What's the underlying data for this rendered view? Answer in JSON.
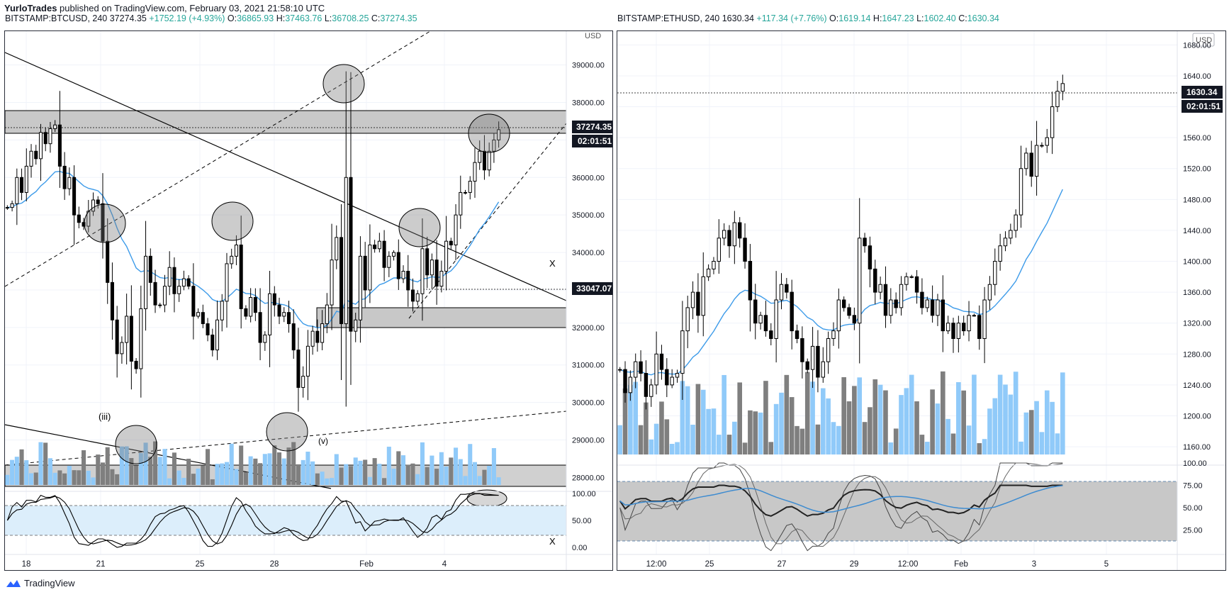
{
  "header": {
    "author": "YurloTrades",
    "published_text": "published on TradingView.com, February 03, 2021 21:58:10 UTC"
  },
  "footer": {
    "brand": "TradingView",
    "logo_icon": "tradingview-logo-icon"
  },
  "panels": [
    {
      "symbol": "BITSTAMP:BTCUSD, 240",
      "last": "37274.35",
      "change": "+1752.19 (+4.93%)",
      "o_label": "O:",
      "o": "36865.93",
      "h_label": "H:",
      "h": "37463.76",
      "l_label": "L:",
      "l": "36708.25",
      "c_label": "C:",
      "c": "37274.35"
    },
    {
      "symbol": "BITSTAMP:ETHUSD, 240",
      "last": "1630.34",
      "change": "+117.34 (+7.76%)",
      "o_label": "O:",
      "o": "1619.14",
      "h_label": "H:",
      "h": "1647.23",
      "l_label": "L:",
      "l": "1602.40",
      "c_label": "C:",
      "c": "1630.34"
    }
  ],
  "colors": {
    "up": "#ffffff",
    "down": "#000000",
    "ma": "#3d9be9",
    "vol_up": "#90caf9",
    "vol_down": "#7f7f7f",
    "zone": "#c8c8c8",
    "osc_band_btc": "#dceefb",
    "osc_band_eth": "#c8c8c8",
    "price_tag_bg": "#131722"
  },
  "chart_data": [
    {
      "type": "candlestick",
      "title": "BITSTAMP:BTCUSD, 240",
      "currency_label": "USD",
      "ylim": [
        27800,
        39900
      ],
      "y_ticks": [
        "28000.00",
        "29000.00",
        "30000.00",
        "31000.00",
        "32000.00",
        "33000.00",
        "34000.00",
        "35000.00",
        "36000.00",
        "37000.00",
        "38000.00",
        "39000.00"
      ],
      "x_ticks": [
        "18",
        "21",
        "25",
        "28",
        "Feb",
        "4"
      ],
      "last_price_label": "37274.35",
      "countdown_label": "02:01:51",
      "level_label": "33047.07",
      "annotations": [
        "(iii)",
        "(v)",
        "X",
        "X"
      ],
      "resistance_zone": [
        37400,
        38000
      ],
      "support_zone": [
        32000,
        32550
      ],
      "osc_ticks": [
        "100.00",
        "50.00",
        "0.00"
      ],
      "closes": [
        35200,
        35300,
        36000,
        35600,
        36300,
        36700,
        36500,
        37200,
        36900,
        37300,
        37400,
        36300,
        35700,
        36000,
        35000,
        34800,
        34700,
        35100,
        35400,
        35300,
        34300,
        33200,
        32200,
        31300,
        31600,
        32300,
        31100,
        30900,
        32500,
        33900,
        33200,
        32600,
        32600,
        33100,
        33600,
        32900,
        33100,
        33300,
        33100,
        32300,
        32400,
        32100,
        31800,
        31400,
        32200,
        32700,
        33700,
        33900,
        34200,
        32500,
        32300,
        32800,
        32400,
        31600,
        31800,
        32900,
        32600,
        32300,
        32400,
        32100,
        31400,
        30400,
        30700,
        31500,
        31900,
        31600,
        32100,
        32600,
        33800,
        34400,
        32100,
        36000,
        31900,
        32200,
        33900,
        33000,
        34200,
        34100,
        34300,
        33600,
        33900,
        34000,
        33300,
        33500,
        33000,
        32700,
        32900,
        34100,
        33400,
        33800,
        33100,
        33500,
        34300,
        34200,
        35000,
        35600,
        35600,
        35900,
        36400,
        36700,
        36200,
        36700,
        37000,
        37274
      ]
    },
    {
      "type": "candlestick",
      "title": "BITSTAMP:ETHUSD, 240",
      "currency_label": "USD",
      "ylim": [
        1150,
        1695
      ],
      "y_ticks": [
        "1160.00",
        "1200.00",
        "1240.00",
        "1280.00",
        "1320.00",
        "1360.00",
        "1400.00",
        "1440.00",
        "1480.00",
        "1520.00",
        "1560.00",
        "1600.00",
        "1640.00",
        "1680.00"
      ],
      "x_ticks": [
        "12:00",
        "25",
        "27",
        "29",
        "12:00",
        "Feb",
        "3",
        "5"
      ],
      "last_price_label": "1630.34",
      "countdown_label": "02:01:51",
      "osc_ticks": [
        "100.00",
        "75.00",
        "50.00",
        "25.00"
      ],
      "closes": [
        1260,
        1230,
        1250,
        1270,
        1255,
        1225,
        1240,
        1280,
        1260,
        1240,
        1250,
        1255,
        1310,
        1340,
        1360,
        1330,
        1380,
        1390,
        1400,
        1430,
        1440,
        1420,
        1450,
        1430,
        1400,
        1350,
        1320,
        1330,
        1310,
        1300,
        1350,
        1370,
        1360,
        1310,
        1300,
        1270,
        1260,
        1290,
        1250,
        1270,
        1300,
        1310,
        1350,
        1340,
        1330,
        1320,
        1430,
        1420,
        1390,
        1360,
        1370,
        1330,
        1350,
        1340,
        1370,
        1380,
        1380,
        1360,
        1340,
        1350,
        1330,
        1350,
        1310,
        1320,
        1300,
        1320,
        1310,
        1330,
        1330,
        1300,
        1350,
        1370,
        1400,
        1420,
        1430,
        1440,
        1460,
        1520,
        1540,
        1510,
        1550,
        1550,
        1560,
        1600,
        1620,
        1630
      ]
    }
  ]
}
